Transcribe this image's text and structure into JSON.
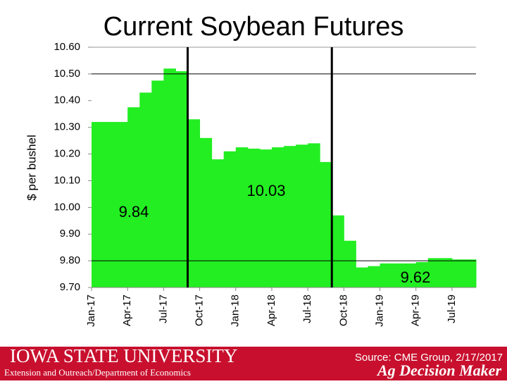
{
  "chart_data": {
    "type": "bar",
    "title": "Current Soybean Futures",
    "y_label": "$ per bushel",
    "categories": [
      "Jan-17",
      null,
      null,
      "Apr-17",
      null,
      null,
      "Jul-17",
      null,
      null,
      "Oct-17",
      null,
      null,
      "Jan-18",
      null,
      null,
      "Apr-18",
      null,
      null,
      "Jul-18",
      null,
      null,
      "Oct-18",
      null,
      null,
      "Jan-19",
      null,
      null,
      "Apr-19",
      null,
      null,
      "Jul-19",
      null
    ],
    "values": [
      10.32,
      10.32,
      10.32,
      10.375,
      10.43,
      10.475,
      10.52,
      10.51,
      10.33,
      10.26,
      10.18,
      10.21,
      10.225,
      10.22,
      10.217,
      10.225,
      10.23,
      10.235,
      10.24,
      10.17,
      9.97,
      9.875,
      9.775,
      9.78,
      9.79,
      9.79,
      9.79,
      9.795,
      9.81,
      9.81,
      9.805,
      9.805
    ],
    "color": "#22ee22",
    "ylim": [
      9.7,
      10.6
    ],
    "yticks": [
      {
        "value": 9.7,
        "label": "9.70"
      },
      {
        "value": 9.8,
        "label": "9.80"
      },
      {
        "value": 9.9,
        "label": "9.90"
      },
      {
        "value": 10.0,
        "label": "10.00"
      },
      {
        "value": 10.1,
        "label": "10.10"
      },
      {
        "value": 10.2,
        "label": "10.20"
      },
      {
        "value": 10.3,
        "label": "10.30"
      },
      {
        "value": 10.4,
        "label": "10.40"
      },
      {
        "value": 10.5,
        "label": "10.50"
      },
      {
        "value": 10.6,
        "label": "10.60"
      }
    ],
    "reference_lines": [
      10.5,
      9.8
    ],
    "annotations": [
      "9.84",
      "10.03",
      "9.62"
    ]
  },
  "footer": {
    "university": "IOWA STATE UNIVERSITY",
    "department": "Extension and Outreach/Department of Economics",
    "source": "Source: CME Group, 2/17/2017",
    "brand": "Ag Decision Maker"
  }
}
